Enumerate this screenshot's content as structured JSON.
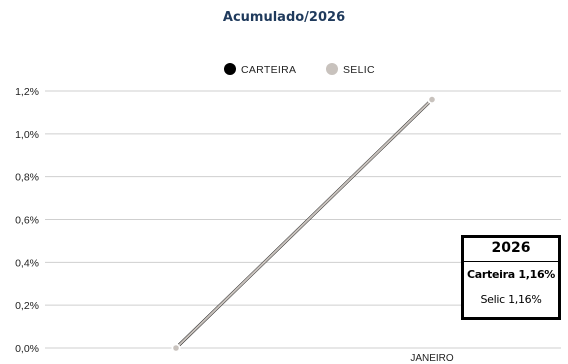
{
  "chart_data": {
    "type": "line",
    "title": "Acumulado/2026",
    "x": [
      "",
      "JANEIRO"
    ],
    "series": [
      {
        "name": "CARTEIRA",
        "color": "#000000",
        "values": [
          0.0,
          1.16
        ]
      },
      {
        "name": "SELIC",
        "color": "#c8c2bd",
        "values": [
          0.0,
          1.16
        ]
      }
    ],
    "y_ticks": [
      "0,0%",
      "0,2%",
      "0,4%",
      "0,6%",
      "0,8%",
      "1,0%",
      "1,2%"
    ],
    "ylim": [
      0,
      1.2
    ],
    "grid": true,
    "legend_position": "top-center"
  },
  "summary": {
    "year": "2026",
    "carteira": "Carteira 1,16%",
    "selic": "Selic 1,16%"
  }
}
